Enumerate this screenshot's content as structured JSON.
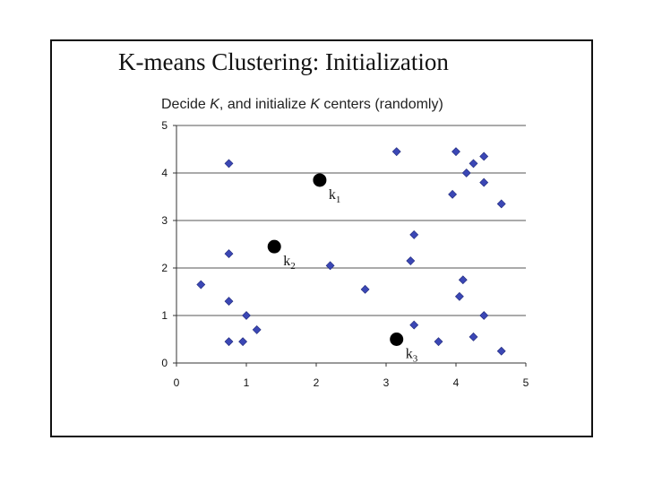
{
  "slide": {
    "title": "K-means Clustering: Initialization"
  },
  "chart_data": {
    "type": "scatter",
    "subtitle_parts": [
      "Decide ",
      "K",
      ", and initialize ",
      "K",
      " centers (randomly)"
    ],
    "xlim": [
      0,
      5
    ],
    "ylim": [
      0,
      5
    ],
    "xticks": [
      0,
      1,
      2,
      3,
      4,
      5
    ],
    "yticks": [
      0,
      1,
      2,
      3,
      4,
      5
    ],
    "grid": "horizontal",
    "marker_color": "#3b47b5",
    "center_color": "#000000",
    "points": [
      {
        "x": 0.75,
        "y": 4.2
      },
      {
        "x": 0.75,
        "y": 2.3
      },
      {
        "x": 0.35,
        "y": 1.65
      },
      {
        "x": 0.75,
        "y": 1.3
      },
      {
        "x": 1.0,
        "y": 1.0
      },
      {
        "x": 1.15,
        "y": 0.7
      },
      {
        "x": 0.95,
        "y": 0.45
      },
      {
        "x": 0.75,
        "y": 0.45
      },
      {
        "x": 2.2,
        "y": 2.05
      },
      {
        "x": 2.7,
        "y": 1.55
      },
      {
        "x": 3.15,
        "y": 4.45
      },
      {
        "x": 3.4,
        "y": 2.7
      },
      {
        "x": 3.35,
        "y": 2.15
      },
      {
        "x": 3.4,
        "y": 0.8
      },
      {
        "x": 3.75,
        "y": 0.45
      },
      {
        "x": 4.0,
        "y": 4.45
      },
      {
        "x": 4.15,
        "y": 4.0
      },
      {
        "x": 4.25,
        "y": 4.2
      },
      {
        "x": 4.4,
        "y": 4.35
      },
      {
        "x": 3.95,
        "y": 3.55
      },
      {
        "x": 4.4,
        "y": 3.8
      },
      {
        "x": 4.65,
        "y": 3.35
      },
      {
        "x": 4.1,
        "y": 1.75
      },
      {
        "x": 4.05,
        "y": 1.4
      },
      {
        "x": 4.4,
        "y": 1.0
      },
      {
        "x": 4.25,
        "y": 0.55
      },
      {
        "x": 4.65,
        "y": 0.25
      }
    ],
    "centers": [
      {
        "label": "k",
        "sub": "1",
        "x": 2.05,
        "y": 3.85
      },
      {
        "label": "k",
        "sub": "2",
        "x": 1.4,
        "y": 2.45
      },
      {
        "label": "k",
        "sub": "3",
        "x": 3.15,
        "y": 0.5
      }
    ]
  }
}
